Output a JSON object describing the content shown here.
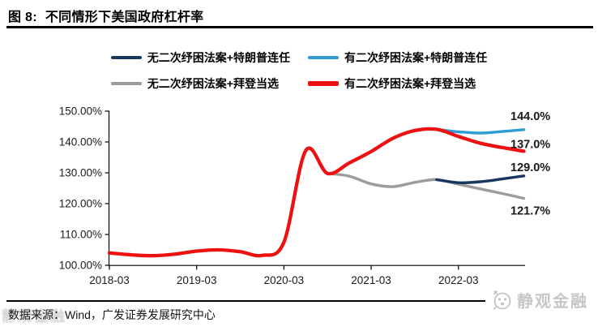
{
  "title": {
    "figure_label": "图 8:",
    "text": "不同情形下美国政府杠杆率"
  },
  "source": {
    "text": "数据来源：Wind，广发证券发展研究中心"
  },
  "watermark": {
    "text": "静观金融"
  },
  "chart_data": {
    "type": "line",
    "title": "不同情形下美国政府杠杆率",
    "ylabel": "",
    "xlabel": "",
    "ylim": [
      100,
      150
    ],
    "grid": false,
    "legend_position": "top",
    "y_ticks": {
      "labels": [
        "150.00%",
        "140.00%",
        "130.00%",
        "120.00%",
        "110.00%",
        "100.00%"
      ],
      "values": [
        150,
        140,
        130,
        120,
        110,
        100
      ]
    },
    "x": [
      "2018-03",
      "2018-06",
      "2018-09",
      "2018-12",
      "2019-03",
      "2019-06",
      "2019-09",
      "2019-12",
      "2020-03",
      "2020-06",
      "2020-09",
      "2020-12",
      "2021-03",
      "2021-06",
      "2021-09",
      "2021-12",
      "2022-03",
      "2022-06",
      "2022-09",
      "2022-12"
    ],
    "x_axis_ticks": [
      "2018-03",
      "2019-03",
      "2020-03",
      "2021-03",
      "2022-03"
    ],
    "series": [
      {
        "key": "no-bill-trump",
        "label": "无二次纾困法案+特朗普连任",
        "color": "#17375E",
        "width": 3.4,
        "end_label": "129.0%",
        "values": [
          null,
          null,
          null,
          null,
          null,
          null,
          null,
          null,
          null,
          null,
          null,
          null,
          null,
          null,
          null,
          127.8,
          126.8,
          127.1,
          128.0,
          129.0
        ]
      },
      {
        "key": "bill-trump",
        "label": "有二次纾困法案+特朗普连任",
        "color": "#2E9BD6",
        "width": 3.4,
        "end_label": "144.0%",
        "values": [
          null,
          null,
          null,
          null,
          null,
          null,
          null,
          null,
          null,
          null,
          null,
          null,
          null,
          null,
          null,
          144.1,
          143.3,
          142.9,
          143.4,
          144.0
        ]
      },
      {
        "key": "no-bill-biden",
        "label": "无二次纾困法案+拜登当选",
        "color": "#9C9C9C",
        "width": 3.4,
        "end_label": "121.7%",
        "values": [
          null,
          null,
          null,
          null,
          null,
          null,
          null,
          null,
          null,
          null,
          129.8,
          128.9,
          126.4,
          125.5,
          126.9,
          127.8,
          126.3,
          124.8,
          123.3,
          121.7
        ]
      },
      {
        "key": "bill-biden",
        "label": "有二次纾困法案+拜登当选",
        "color": "#EE1111",
        "width": 4.3,
        "end_label": "137.0%",
        "values": [
          104.0,
          103.4,
          103.1,
          103.6,
          104.6,
          105.0,
          104.4,
          103.2,
          107.5,
          137.2,
          129.8,
          133.2,
          136.9,
          141.2,
          143.7,
          144.1,
          141.8,
          139.6,
          138.2,
          137.0
        ]
      }
    ]
  }
}
